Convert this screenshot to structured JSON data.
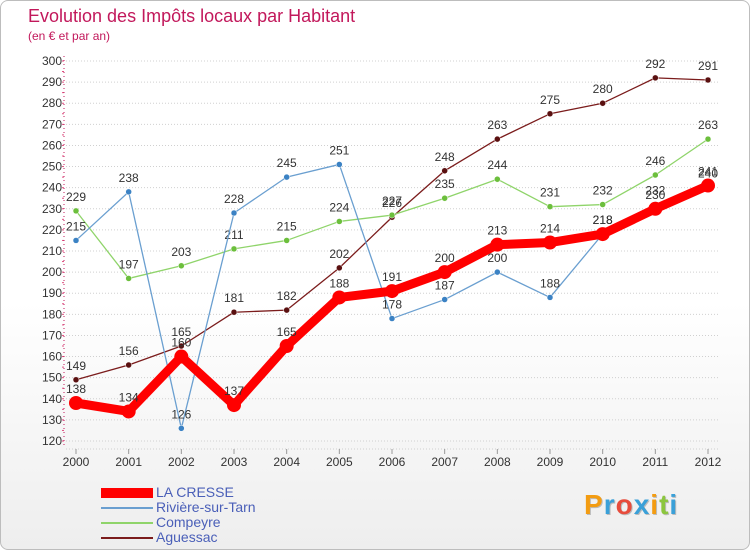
{
  "header": {
    "title": "Evolution des Impôts locaux par Habitant",
    "subtitle": "(en € et par an)"
  },
  "logo": {
    "text": "Proxiti",
    "letter_colors": [
      "#f39c12",
      "#3aa0d8",
      "#e74c3c",
      "#3aa0d8",
      "#f39c12",
      "#8cc63f",
      "#3aa0d8"
    ]
  },
  "chart_data": {
    "type": "line",
    "title": "Evolution des Impôts locaux par Habitant",
    "subtitle": "(en € et par an)",
    "xlabel": "",
    "ylabel": "",
    "x": [
      "2000",
      "2001",
      "2002",
      "2003",
      "2004",
      "2005",
      "2006",
      "2007",
      "2008",
      "2009",
      "2010",
      "2011",
      "2012"
    ],
    "y_ticks": [
      120,
      130,
      140,
      150,
      160,
      170,
      180,
      190,
      200,
      210,
      220,
      230,
      240,
      250,
      260,
      270,
      280,
      290,
      300
    ],
    "ylim": [
      120,
      300
    ],
    "grid": "horizontal",
    "legend_position": "bottom-left",
    "series": [
      {
        "name": "Aguessac",
        "color": "#7b1c1c",
        "marker": "#5a1010",
        "width": "thin",
        "values": [
          149,
          156,
          165,
          181,
          182,
          202,
          226,
          248,
          263,
          275,
          280,
          292,
          291
        ]
      },
      {
        "name": "Compeyre",
        "color": "#8fd46a",
        "marker": "#6cbf3c",
        "width": "thin",
        "values": [
          229,
          197,
          203,
          211,
          215,
          224,
          227,
          235,
          244,
          231,
          232,
          246,
          263
        ]
      },
      {
        "name": "Rivière-sur-Tarn",
        "color": "#6a9fd0",
        "marker": "#3b82c4",
        "width": "thin",
        "values": [
          215,
          238,
          126,
          228,
          245,
          251,
          178,
          187,
          200,
          188,
          218,
          232,
          240
        ]
      },
      {
        "name": "LA CRESSE",
        "color": "#ff0000",
        "marker": "#ff0000",
        "width": "thick",
        "values": [
          138,
          134,
          160,
          137,
          165,
          188,
          191,
          200,
          213,
          214,
          218,
          230,
          241
        ]
      }
    ],
    "legend": [
      "LA CRESSE",
      "Rivière-sur-Tarn",
      "Compeyre",
      "Aguessac"
    ]
  }
}
